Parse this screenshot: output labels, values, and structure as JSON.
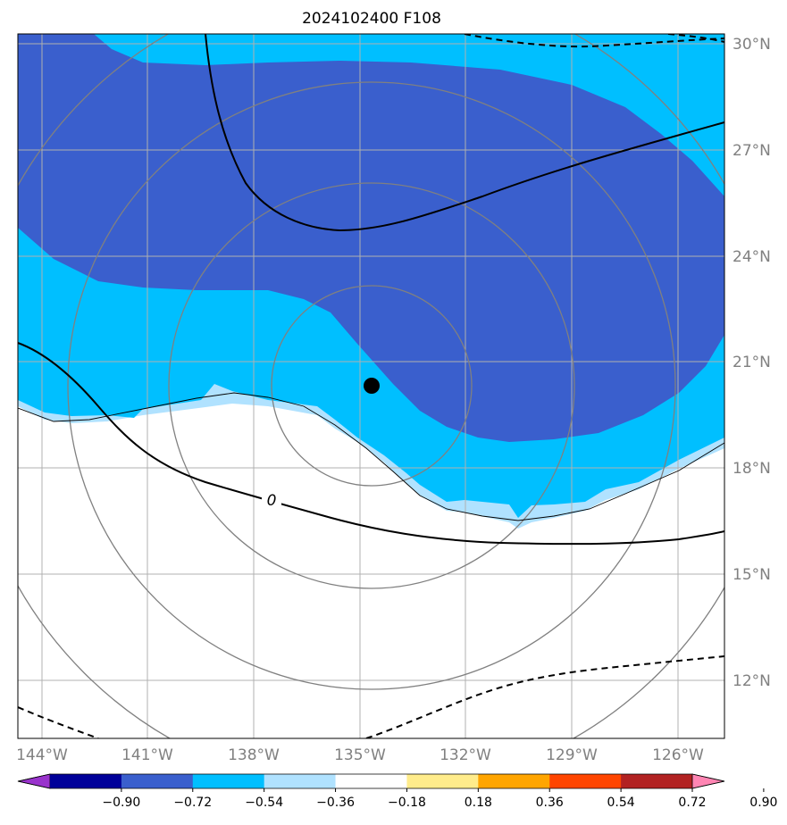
{
  "title": "2024102400 F108",
  "map": {
    "lat_labels": [
      {
        "lat": 30,
        "label": "30°N"
      },
      {
        "lat": 27,
        "label": "27°N"
      },
      {
        "lat": 24,
        "label": "24°N"
      },
      {
        "lat": 21,
        "label": "21°N"
      },
      {
        "lat": 18,
        "label": "18°N"
      },
      {
        "lat": 15,
        "label": "15°N"
      },
      {
        "lat": 12,
        "label": "12°N"
      }
    ],
    "lon_labels": [
      {
        "lon": -144,
        "label": "144°W"
      },
      {
        "lon": -141,
        "label": "141°W"
      },
      {
        "lon": -138,
        "label": "138°W"
      },
      {
        "lon": -135,
        "label": "135°W"
      },
      {
        "lon": -132,
        "label": "132°W"
      },
      {
        "lon": -129,
        "label": "129°W"
      },
      {
        "lon": -126,
        "label": "126°W"
      }
    ],
    "contour_label": "0",
    "storm_center": {
      "lon": -134.7,
      "lat": 20.4
    }
  },
  "colorbar": {
    "colors": [
      "#9933cc",
      "#000099",
      "#3a5fcd",
      "#00bfff",
      "#b0e2ff",
      "#ffffff",
      "#ffec8b",
      "#ffa500",
      "#ff4500",
      "#b22222",
      "#ff85b3"
    ],
    "tick_labels": [
      "−0.90",
      "−0.72",
      "−0.54",
      "−0.36",
      "−0.18",
      "0.18",
      "0.36",
      "0.54",
      "0.72",
      "0.90"
    ]
  },
  "colors": {
    "fill_dark": "#3a5fcd",
    "fill_mid": "#00bfff",
    "fill_light": "#b0e2ff",
    "grid": "#b0b0b0",
    "range_rings": "#808080"
  }
}
